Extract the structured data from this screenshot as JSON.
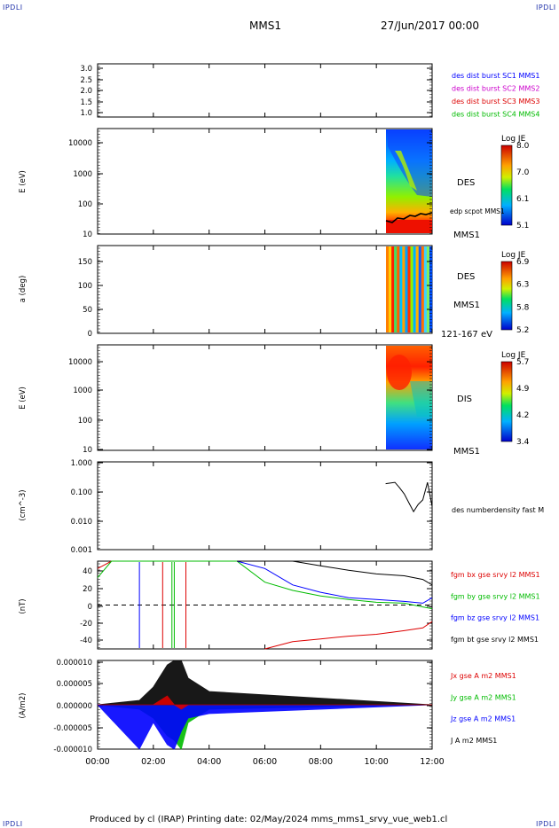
{
  "corner_label": "IPDLI",
  "header": {
    "spacecraft": "MMS1",
    "datetime": "27/Jun/2017 00:00"
  },
  "footer": {
    "text": "Produced by cl (IRAP)   Printing date: 02/May/2024   mms_mms1_srvy_vue_web1.cl"
  },
  "time_axis": {
    "ticks": [
      "00:00",
      "02:00",
      "04:00",
      "06:00",
      "08:00",
      "10:00",
      "12:00"
    ]
  },
  "panels": {
    "p1": {
      "ylim": [
        0.8,
        3.2
      ],
      "yticks": [
        "3.0",
        "2.5",
        "2.0",
        "1.5",
        "1.0"
      ],
      "legend": [
        {
          "text": "des dist burst SC1 MMS1",
          "color": "#0000ff"
        },
        {
          "text": "des dist burst SC2 MMS2",
          "color": "#cc00cc"
        },
        {
          "text": "des dist burst SC3 MMS3",
          "color": "#dd0000"
        },
        {
          "text": "des dist burst SC4 MMS4",
          "color": "#00bb00"
        }
      ]
    },
    "p2": {
      "ylabel": "E (eV)",
      "yticks": [
        "10000",
        "1000",
        "100",
        "10"
      ],
      "label": "DES",
      "overlay_label": "edp scpot MMS1",
      "sc_label": "MMS1",
      "colorbar": {
        "title": "Log JE",
        "ticks": [
          "8.0",
          "7.0",
          "6.1",
          "5.1"
        ]
      }
    },
    "p3": {
      "ylabel": "a (deg)",
      "yticks": [
        "150",
        "100",
        "50",
        "0"
      ],
      "label": "DES",
      "sc_label": "MMS1",
      "energy_label": "121-167 eV",
      "colorbar": {
        "title": "Log JE",
        "ticks": [
          "6.9",
          "6.3",
          "5.8",
          "5.2"
        ]
      }
    },
    "p4": {
      "ylabel": "E (eV)",
      "yticks": [
        "10000",
        "1000",
        "100",
        "10"
      ],
      "label": "DIS",
      "sc_label": "MMS1",
      "colorbar": {
        "title": "Log JE",
        "ticks": [
          "5.7",
          "4.9",
          "4.2",
          "3.4"
        ]
      }
    },
    "p5": {
      "ylabel": "(cm^-3)",
      "yticks": [
        "1.000",
        "0.100",
        "0.010",
        "0.001"
      ],
      "legend": [
        {
          "text": "des numberdensity fast M",
          "color": "#000000"
        }
      ]
    },
    "p6": {
      "ylabel": "(nT)",
      "yticks": [
        "40",
        "20",
        "0",
        "-20",
        "-40"
      ],
      "legend": [
        {
          "text": "fgm bx gse srvy l2 MMS1",
          "color": "#dd0000"
        },
        {
          "text": "fgm by gse srvy l2 MMS1",
          "color": "#00bb00"
        },
        {
          "text": "fgm bz gse srvy l2 MMS1",
          "color": "#0000ff"
        },
        {
          "text": "fgm bt gse srvy l2 MMS1",
          "color": "#000000"
        }
      ]
    },
    "p7": {
      "ylabel": "(A/m2)",
      "yticks": [
        "0.000010",
        "0.000005",
        "0.000000",
        "-0.000005",
        "-0.000010"
      ],
      "legend": [
        {
          "text": "Jx gse A m2 MMS1",
          "color": "#dd0000"
        },
        {
          "text": "Jy gse A m2 MMS1",
          "color": "#00bb00"
        },
        {
          "text": "Jz gse A m2 MMS1",
          "color": "#0000ff"
        },
        {
          "text": "J A m2 MMS1",
          "color": "#000000"
        }
      ]
    }
  },
  "chart_data": [
    {
      "type": "line",
      "title": "",
      "xlabel": "",
      "ylabel": "",
      "ylim": [
        0.8,
        3.2
      ],
      "series": []
    },
    {
      "type": "heatmap",
      "title": "",
      "ylabel": "E (eV)",
      "ylog": true,
      "ylim": [
        10,
        30000
      ],
      "data_time_range": [
        "10:20",
        "12:00"
      ],
      "colorbar_range": [
        5.1,
        8.0
      ],
      "series": [
        {
          "name": "edp scpot MMS1",
          "x": [
            "10:20",
            "10:40",
            "11:00",
            "11:20",
            "11:40",
            "12:00"
          ],
          "y": [
            25,
            32,
            38,
            45,
            42,
            40
          ]
        }
      ]
    },
    {
      "type": "heatmap",
      "title": "",
      "ylabel": "a (deg)",
      "ylim": [
        0,
        180
      ],
      "data_time_range": [
        "10:20",
        "12:00"
      ],
      "colorbar_range": [
        5.2,
        6.9
      ]
    },
    {
      "type": "heatmap",
      "title": "",
      "ylabel": "E (eV)",
      "ylog": true,
      "ylim": [
        10,
        30000
      ],
      "data_time_range": [
        "10:20",
        "12:00"
      ],
      "colorbar_range": [
        3.4,
        5.7
      ]
    },
    {
      "type": "line",
      "title": "",
      "ylabel": "(cm^-3)",
      "ylog": true,
      "ylim": [
        0.001,
        1.0
      ],
      "series": [
        {
          "name": "des numberdensity fast M",
          "x": [
            "10:20",
            "10:40",
            "10:50",
            "11:00",
            "11:10",
            "11:20",
            "11:30",
            "11:40",
            "11:50",
            "12:00"
          ],
          "y": [
            0.18,
            0.2,
            0.13,
            0.08,
            0.04,
            0.02,
            0.035,
            0.05,
            0.2,
            0.03
          ]
        }
      ]
    },
    {
      "type": "line",
      "title": "",
      "ylabel": "(nT)",
      "ylim": [
        -48,
        48
      ],
      "x": [
        "00:00",
        "00:30",
        "05:00",
        "06:00",
        "07:00",
        "08:00",
        "09:00",
        "10:00",
        "11:00",
        "11:40",
        "12:00"
      ],
      "series": [
        {
          "name": "fgm bx gse srvy l2 MMS1",
          "y": [
            40,
            48,
            null,
            -48,
            -40,
            -37,
            -34,
            -32,
            -28,
            -25,
            -18
          ]
        },
        {
          "name": "fgm by gse srvy l2 MMS1",
          "y": [
            30,
            48,
            48,
            25,
            16,
            10,
            6,
            3,
            2,
            -2,
            -4
          ]
        },
        {
          "name": "fgm bz gse srvy l2 MMS1",
          "y": [
            null,
            null,
            48,
            40,
            22,
            14,
            8,
            6,
            4,
            2,
            8
          ]
        },
        {
          "name": "fgm bt gse srvy l2 MMS1",
          "y": [
            null,
            null,
            48,
            48,
            48,
            43,
            38,
            34,
            32,
            28,
            22
          ]
        }
      ]
    },
    {
      "type": "line",
      "title": "",
      "ylabel": "(A/m2)",
      "ylim": [
        -1e-05,
        1e-05
      ],
      "x": [
        "00:00",
        "01:30",
        "02:00",
        "02:30",
        "02:45",
        "03:00",
        "03:15",
        "04:00",
        "12:00"
      ],
      "series": [
        {
          "name": "Jx gse A m2 MMS1",
          "y": [
            0,
            0,
            0,
            2e-06,
            0,
            -1e-06,
            0,
            0,
            0
          ]
        },
        {
          "name": "Jy gse A m2 MMS1",
          "y": [
            0,
            -1e-06,
            -3e-06,
            -7e-06,
            -8e-06,
            -1e-05,
            -4e-06,
            -1e-06,
            0
          ]
        },
        {
          "name": "Jz gse A m2 MMS1",
          "y": [
            0,
            -1e-05,
            -4e-06,
            -9e-06,
            -1e-05,
            -6e-06,
            -3e-06,
            -2e-06,
            0
          ]
        },
        {
          "name": "J A m2 MMS1",
          "y": [
            0,
            1e-06,
            4e-06,
            9e-06,
            1e-05,
            1e-05,
            6e-06,
            3e-06,
            0
          ]
        }
      ]
    }
  ]
}
